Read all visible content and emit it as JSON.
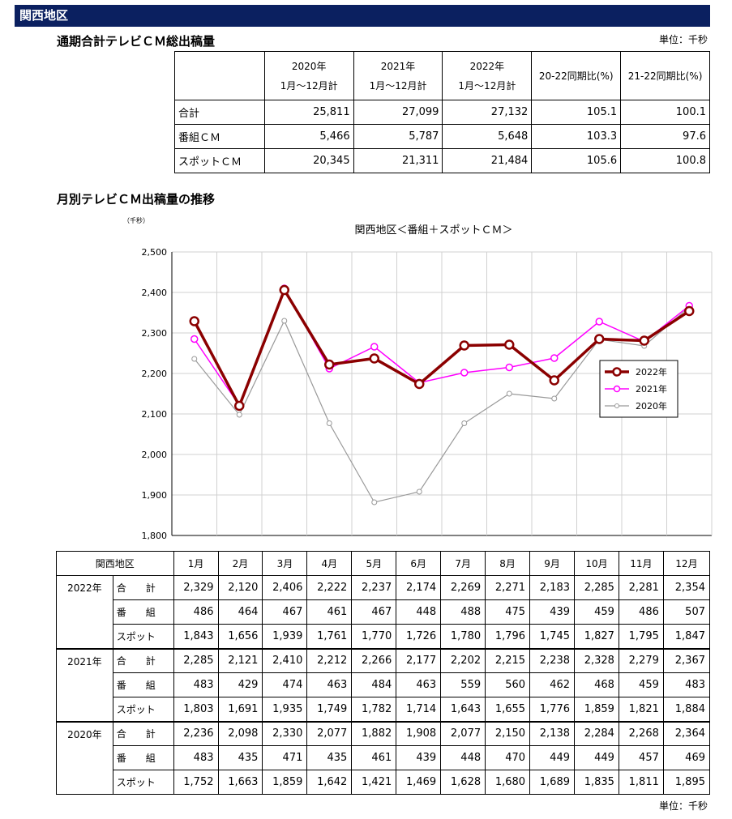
{
  "header": "関西地区",
  "summary": {
    "title": "通期合計テレビＣＭ総出稿量",
    "unit": "単位：千秒",
    "columns": [
      {
        "line1": "2020年",
        "line2": "1月～12月計"
      },
      {
        "line1": "2021年",
        "line2": "1月～12月計"
      },
      {
        "line1": "2022年",
        "line2": "1月～12月計"
      },
      {
        "line1": "20-22同期比(%)",
        "line2": ""
      },
      {
        "line1": "21-22同期比(%)",
        "line2": ""
      }
    ],
    "rows": [
      {
        "label": "合計",
        "values": [
          "25,811",
          "27,099",
          "27,132",
          "105.1",
          "100.1"
        ]
      },
      {
        "label": "番組ＣＭ",
        "values": [
          "5,466",
          "5,787",
          "5,648",
          "103.3",
          "97.6"
        ]
      },
      {
        "label": "スポットＣＭ",
        "values": [
          "20,345",
          "21,311",
          "21,484",
          "105.6",
          "100.8"
        ]
      }
    ]
  },
  "monthly_title": "月別テレビＣＭ出稿量の推移",
  "chart_data": {
    "type": "line",
    "title": "関西地区＜番組＋スポットＣＭ＞",
    "ylabel": "（千秒）",
    "ylim": [
      1800,
      2500
    ],
    "yticks": [
      "1,800",
      "1,900",
      "2,000",
      "2,100",
      "2,200",
      "2,300",
      "2,400",
      "2,500"
    ],
    "categories": [
      "1",
      "2",
      "3",
      "4",
      "5",
      "6",
      "7",
      "8",
      "9",
      "10",
      "11",
      "12"
    ],
    "grid": true,
    "legend_position": "right",
    "series": [
      {
        "name": "2022年",
        "color": "#8b0000",
        "values": [
          2329,
          2120,
          2406,
          2222,
          2237,
          2174,
          2269,
          2271,
          2183,
          2285,
          2281,
          2354
        ]
      },
      {
        "name": "2021年",
        "color": "#ff00ff",
        "values": [
          2285,
          2121,
          2410,
          2212,
          2266,
          2177,
          2202,
          2215,
          2238,
          2328,
          2279,
          2367
        ]
      },
      {
        "name": "2020年",
        "color": "#999999",
        "values": [
          2236,
          2098,
          2330,
          2077,
          1882,
          1908,
          2077,
          2150,
          2138,
          2284,
          2268,
          2364
        ]
      }
    ]
  },
  "monthly_table": {
    "corner": "関西地区",
    "months": [
      "1月",
      "2月",
      "3月",
      "4月",
      "5月",
      "6月",
      "7月",
      "8月",
      "9月",
      "10月",
      "11月",
      "12月"
    ],
    "years": [
      {
        "year": "2022年",
        "rows": [
          {
            "label": "合　　計",
            "values": [
              "2,329",
              "2,120",
              "2,406",
              "2,222",
              "2,237",
              "2,174",
              "2,269",
              "2,271",
              "2,183",
              "2,285",
              "2,281",
              "2,354"
            ]
          },
          {
            "label": "番　　組",
            "values": [
              "486",
              "464",
              "467",
              "461",
              "467",
              "448",
              "488",
              "475",
              "439",
              "459",
              "486",
              "507"
            ]
          },
          {
            "label": "スポット",
            "values": [
              "1,843",
              "1,656",
              "1,939",
              "1,761",
              "1,770",
              "1,726",
              "1,780",
              "1,796",
              "1,745",
              "1,827",
              "1,795",
              "1,847"
            ]
          }
        ]
      },
      {
        "year": "2021年",
        "rows": [
          {
            "label": "合　　計",
            "values": [
              "2,285",
              "2,121",
              "2,410",
              "2,212",
              "2,266",
              "2,177",
              "2,202",
              "2,215",
              "2,238",
              "2,328",
              "2,279",
              "2,367"
            ]
          },
          {
            "label": "番　　組",
            "values": [
              "483",
              "429",
              "474",
              "463",
              "484",
              "463",
              "559",
              "560",
              "462",
              "468",
              "459",
              "483"
            ]
          },
          {
            "label": "スポット",
            "values": [
              "1,803",
              "1,691",
              "1,935",
              "1,749",
              "1,782",
              "1,714",
              "1,643",
              "1,655",
              "1,776",
              "1,859",
              "1,821",
              "1,884"
            ]
          }
        ]
      },
      {
        "year": "2020年",
        "rows": [
          {
            "label": "合　　計",
            "values": [
              "2,236",
              "2,098",
              "2,330",
              "2,077",
              "1,882",
              "1,908",
              "2,077",
              "2,150",
              "2,138",
              "2,284",
              "2,268",
              "2,364"
            ]
          },
          {
            "label": "番　　組",
            "values": [
              "483",
              "435",
              "471",
              "435",
              "461",
              "439",
              "448",
              "470",
              "449",
              "449",
              "457",
              "469"
            ]
          },
          {
            "label": "スポット",
            "values": [
              "1,752",
              "1,663",
              "1,859",
              "1,642",
              "1,421",
              "1,469",
              "1,628",
              "1,680",
              "1,689",
              "1,835",
              "1,811",
              "1,895"
            ]
          }
        ]
      }
    ],
    "unit": "単位：千秒"
  }
}
